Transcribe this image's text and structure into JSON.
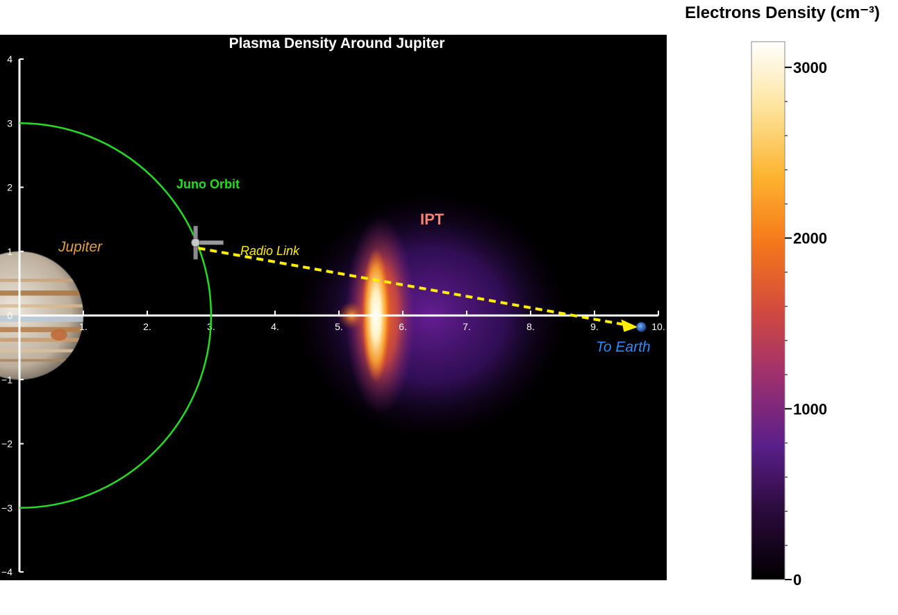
{
  "chart_data": {
    "type": "heatmap",
    "title": "Plasma Density Around Jupiter",
    "xlabel": "",
    "ylabel": "",
    "xlim": [
      0,
      10
    ],
    "ylim": [
      -4,
      4
    ],
    "x_ticks": [
      "1.",
      "2.",
      "3.",
      "4.",
      "5.",
      "6.",
      "7.",
      "8.",
      "9.",
      "10."
    ],
    "y_ticks": [
      "4",
      "3",
      "2",
      "1",
      "0",
      "−1",
      "−2",
      "−3",
      "−4"
    ],
    "colorbar": {
      "title": "Electrons Density (cm⁻³)",
      "range": [
        0,
        3150
      ],
      "ticks": [
        "3000",
        "2000",
        "1000",
        "0"
      ],
      "tick_values": [
        3000,
        2000,
        1000,
        0
      ],
      "colors": [
        "#000000",
        "#2a0a3a",
        "#5a1f8a",
        "#9c2f70",
        "#d24a3e",
        "#f5771a",
        "#fdb32f",
        "#fde39a",
        "#ffffff"
      ]
    },
    "juno_orbit_radius": 3,
    "jupiter_radius": 1,
    "ipt_peak": {
      "x": 5.7,
      "y": 0,
      "density": 3150
    },
    "radio_link": {
      "from": [
        2.8,
        1.05
      ],
      "to": [
        9.7,
        -0.18
      ]
    },
    "annotations": {
      "jupiter": "Jupiter",
      "juno_orbit": "Juno Orbit",
      "ipt": "IPT",
      "radio_link": "Radio Link",
      "to_earth": "To Earth"
    },
    "colors": {
      "orbit": "#22dd22",
      "link": "#ffee00",
      "jupiter_label": "#e0a040",
      "ipt_label": "#ff8070",
      "earth_label": "#2a8cff"
    }
  }
}
